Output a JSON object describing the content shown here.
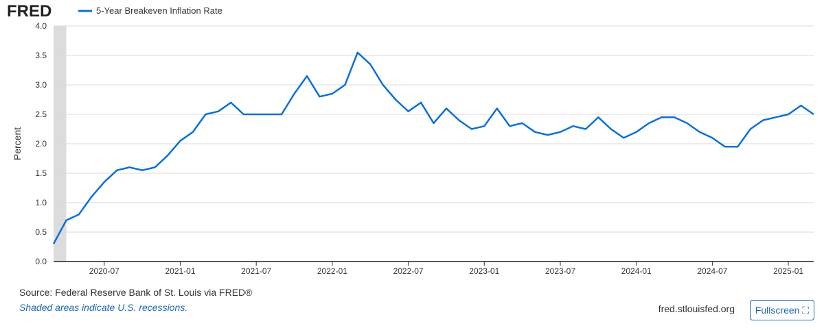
{
  "chart_data": {
    "type": "line",
    "logo": "FRED",
    "y_label": "Percent",
    "x": [
      "2020-03",
      "2020-04",
      "2020-05",
      "2020-06",
      "2020-07",
      "2020-08",
      "2020-09",
      "2020-10",
      "2020-11",
      "2020-12",
      "2021-01",
      "2021-02",
      "2021-03",
      "2021-04",
      "2021-05",
      "2021-06",
      "2021-07",
      "2021-08",
      "2021-09",
      "2021-10",
      "2021-11",
      "2021-12",
      "2022-01",
      "2022-02",
      "2022-03",
      "2022-04",
      "2022-05",
      "2022-06",
      "2022-07",
      "2022-08",
      "2022-09",
      "2022-10",
      "2022-11",
      "2022-12",
      "2023-01",
      "2023-02",
      "2023-03",
      "2023-04",
      "2023-05",
      "2023-06",
      "2023-07",
      "2023-08",
      "2023-09",
      "2023-10",
      "2023-11",
      "2023-12",
      "2024-01",
      "2024-02",
      "2024-03",
      "2024-04",
      "2024-05",
      "2024-06",
      "2024-07",
      "2024-08",
      "2024-09",
      "2024-10",
      "2024-11",
      "2024-12",
      "2025-01",
      "2025-02",
      "2025-03"
    ],
    "series": [
      {
        "name": "5-Year Breakeven Inflation Rate",
        "color": "#0a6fd8",
        "values": [
          0.3,
          0.7,
          0.8,
          1.1,
          1.35,
          1.55,
          1.6,
          1.55,
          1.6,
          1.8,
          2.05,
          2.2,
          2.5,
          2.55,
          2.7,
          2.5,
          2.5,
          2.5,
          2.5,
          2.85,
          3.15,
          2.8,
          2.85,
          3.0,
          3.55,
          3.35,
          3.0,
          2.75,
          2.55,
          2.7,
          2.35,
          2.6,
          2.4,
          2.25,
          2.3,
          2.6,
          2.3,
          2.35,
          2.2,
          2.15,
          2.2,
          2.3,
          2.25,
          2.45,
          2.25,
          2.1,
          2.2,
          2.35,
          2.45,
          2.45,
          2.35,
          2.2,
          2.1,
          1.95,
          1.95,
          2.25,
          2.4,
          2.45,
          2.5,
          2.65,
          2.5
        ]
      }
    ],
    "xlim": [
      "2020-03",
      "2025-03"
    ],
    "xticks": [
      "2020-07",
      "2021-01",
      "2021-07",
      "2022-01",
      "2022-07",
      "2023-01",
      "2023-07",
      "2024-01",
      "2024-07",
      "2025-01"
    ],
    "ylim": [
      0,
      4
    ],
    "yticks": [
      {
        "value": 0,
        "label": "0.0"
      },
      0.5,
      {
        "value": 1,
        "label": "1.0"
      },
      1.5,
      {
        "value": 2,
        "label": "2.0"
      },
      2.5,
      {
        "value": 3,
        "label": "3.0"
      },
      3.5,
      {
        "value": 4,
        "label": "4.0"
      }
    ],
    "grid": true,
    "recessions": [
      {
        "start": "2020-02",
        "end": "2020-04"
      }
    ],
    "source": "Source: Federal Reserve Bank of St. Louis via FRED®",
    "note": "Shaded areas indicate U.S. recessions.",
    "url": "fred.stlouisfed.org",
    "button": "Fullscreen"
  }
}
